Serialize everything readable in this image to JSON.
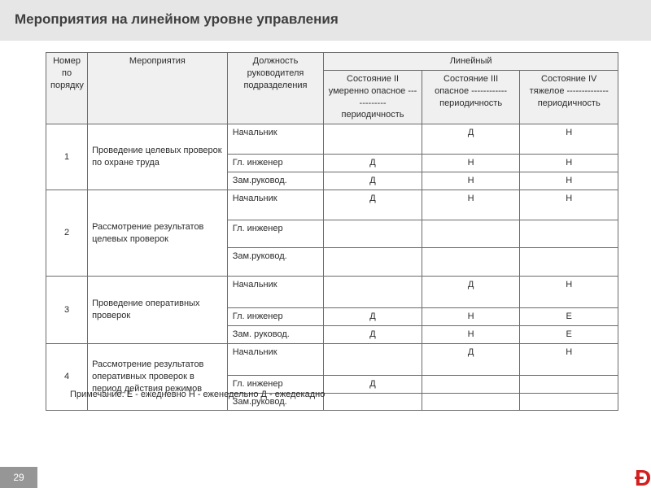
{
  "title": "Мероприятия на линейном уровне управления",
  "page_number": "29",
  "colors": {
    "title_bg": "#e6e6e6",
    "header_bg": "#f0f0f0",
    "border": "#6b6b6b",
    "pagenum_bg": "#969696",
    "logo_color": "#d22020"
  },
  "header": {
    "number": "Номер по порядку",
    "activity": "Мероприятия",
    "position": "Должность руководителя подразделения",
    "group": "Линейный",
    "state2": "Состояние II умеренно опасное ------------ периодичность",
    "state3": "Состояние III опасное ------------ периодичность",
    "state4": "Состояние IV тяжелое -------------- периодичность"
  },
  "positions": {
    "head": "Начальник",
    "chief_eng": "Гл. инженер",
    "deputy": "Зам.руковод.",
    "deputy_sp": "Зам. руковод."
  },
  "groups": [
    {
      "num": "1",
      "activity": "Проведение целевых проверок  по охране труда",
      "rows": [
        {
          "pos_key": "head",
          "s2": "",
          "s3": "Д",
          "s4": "Н"
        },
        {
          "pos_key": "chief_eng",
          "s2": "Д",
          "s3": "Н",
          "s4": "Н"
        },
        {
          "pos_key": "deputy",
          "s2": "Д",
          "s3": "Н",
          "s4": "Н"
        }
      ]
    },
    {
      "num": "2",
      "activity": "Рассмотрение  результатов целевых проверок",
      "rows": [
        {
          "pos_key": "head",
          "s2": "Д",
          "s3": "Н",
          "s4": "Н"
        },
        {
          "pos_key": "chief_eng",
          "s2": "",
          "s3": "",
          "s4": ""
        },
        {
          "pos_key": "deputy",
          "s2": "",
          "s3": "",
          "s4": ""
        }
      ]
    },
    {
      "num": "3",
      "activity": "Проведение оперативных  проверок",
      "rows": [
        {
          "pos_key": "head",
          "s2": "",
          "s3": "Д",
          "s4": "Н"
        },
        {
          "pos_key": "chief_eng",
          "s2": "Д",
          "s3": "Н",
          "s4": "Е"
        },
        {
          "pos_key": "deputy_sp",
          "s2": "Д",
          "s3": "Н",
          "s4": "Е"
        }
      ]
    },
    {
      "num": "4",
      "activity": "Рассмотрение  результатов оперативных проверок в период действия режимов",
      "rows": [
        {
          "pos_key": "head",
          "s2": "",
          "s3": "Д",
          "s4": "Н"
        },
        {
          "pos_key": "chief_eng",
          "s2": "Д",
          "s3": "",
          "s4": ""
        },
        {
          "pos_key": "deputy",
          "s2": "",
          "s3": "",
          "s4": ""
        }
      ]
    }
  ],
  "footnote": "Примечание:   Е - ежедневно    Н - еженедельно    Д - ежедекадно"
}
